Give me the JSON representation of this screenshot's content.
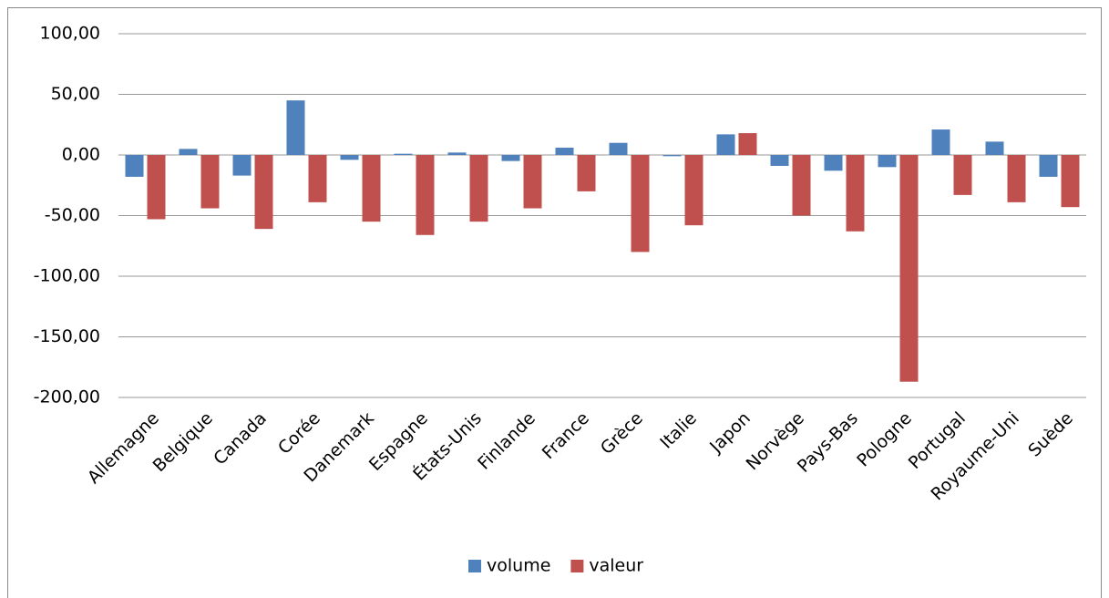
{
  "chart_data": {
    "type": "bar",
    "categories": [
      "Allemagne",
      "Belgique",
      "Canada",
      "Corée",
      "Danemark",
      "Espagne",
      "États-Unis",
      "Finlande",
      "France",
      "Grèce",
      "Italie",
      "Japon",
      "Norvège",
      "Pays-Bas",
      "Pologne",
      "Portugal",
      "Royaume-Uni",
      "Suède"
    ],
    "series": [
      {
        "name": "volume",
        "color": "#4f81bd",
        "values": [
          -18,
          5,
          -17,
          45,
          -4,
          1,
          2,
          -5,
          6,
          10,
          -1,
          17,
          -9,
          -13,
          -10,
          21,
          11,
          -18
        ]
      },
      {
        "name": "valeur",
        "color": "#c0504d",
        "values": [
          -53,
          -44,
          -61,
          -39,
          -55,
          -66,
          -55,
          -44,
          -30,
          -80,
          -58,
          18,
          -50,
          -63,
          -187,
          -33,
          -39,
          -43
        ]
      }
    ],
    "ylim": [
      -200,
      100
    ],
    "yticks": [
      {
        "value": -200,
        "label": "-200,00"
      },
      {
        "value": -150,
        "label": "-150,00"
      },
      {
        "value": -100,
        "label": "-100,00"
      },
      {
        "value": -50,
        "label": "-50,00"
      },
      {
        "value": 0,
        "label": "0,00"
      },
      {
        "value": 50,
        "label": "50,00"
      },
      {
        "value": 100,
        "label": "100,00"
      }
    ],
    "grid": true,
    "legend": "bottom"
  }
}
